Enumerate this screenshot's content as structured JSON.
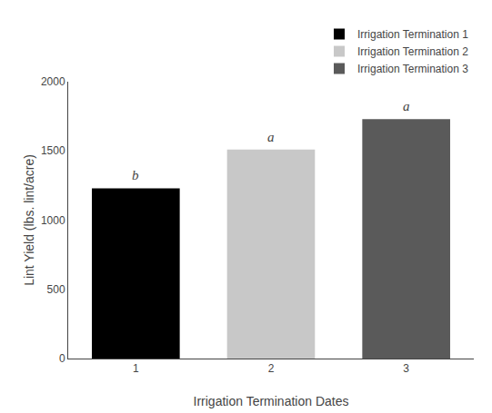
{
  "chart_data": {
    "type": "bar",
    "x": [
      1,
      2,
      3
    ],
    "series": [
      {
        "name": "Irrigation Termination 1",
        "color": "#000000",
        "values": [
          1230,
          null,
          null
        ]
      },
      {
        "name": "Irrigation Termination 2",
        "color": "#c8c8c8",
        "values": [
          null,
          1510,
          null
        ]
      },
      {
        "name": "Irrigation Termination 3",
        "color": "#5a5a5a",
        "values": [
          null,
          null,
          1730
        ]
      }
    ],
    "annotations": [
      "b",
      "a",
      "a"
    ],
    "xlabel": "Irrigation Termination Dates",
    "ylabel": "Lint Yield (lbs. lint/acre)",
    "xlim": [
      0.5,
      3.5
    ],
    "xticks": [
      1,
      2,
      3
    ],
    "ylim": [
      0,
      2000
    ],
    "yticks": [
      0,
      500,
      1000,
      1500,
      2000
    ],
    "grid": false,
    "legend": "upper right"
  }
}
